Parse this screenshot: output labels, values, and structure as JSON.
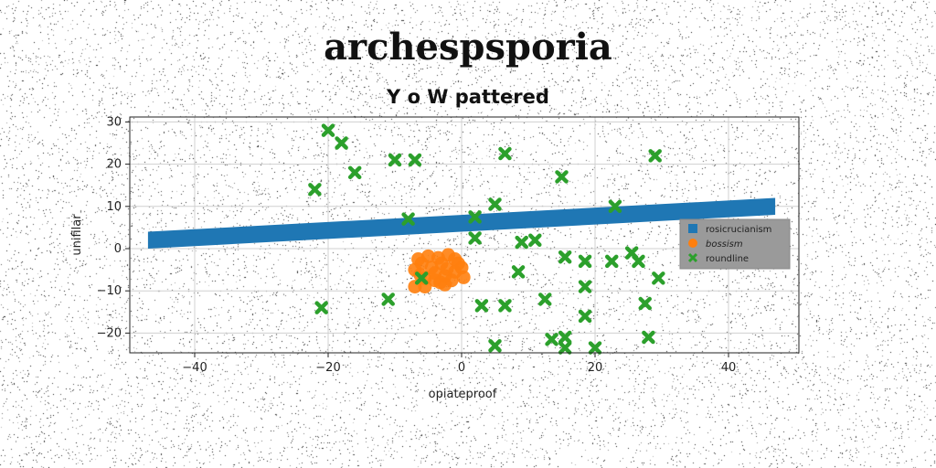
{
  "page": {
    "title": "archespsporia",
    "subtitle": "Y o W pattered"
  },
  "chart_data": {
    "type": "scatter",
    "title": "Y o W pattered",
    "xlabel": "opiateproof",
    "ylabel": "unifilar",
    "xlim": [
      -50,
      50
    ],
    "ylim": [
      -25,
      32
    ],
    "xticks": [
      "−40",
      "−20",
      "0",
      "20",
      "40"
    ],
    "yticks": [
      "30",
      "20",
      "10",
      "0",
      "−10",
      "−20"
    ],
    "grid": true,
    "legend_position": "right",
    "series": [
      {
        "name": "rosicrucianism",
        "kind": "band",
        "color": "#1f77b4",
        "x": [
          -47,
          47
        ],
        "y_lower": [
          0,
          8
        ],
        "y_upper": [
          4,
          12
        ]
      },
      {
        "name": "bossism",
        "kind": "scatter",
        "marker": "circle",
        "color": "#ff7f0e",
        "points": [
          [
            -6.5,
            -2.5
          ],
          [
            -5,
            -1.8
          ],
          [
            -3.5,
            -2.2
          ],
          [
            -2,
            -1.5
          ],
          [
            -0.5,
            -3.5
          ],
          [
            0,
            -4.5
          ],
          [
            -1,
            -5.5
          ],
          [
            -2.5,
            -6.5
          ],
          [
            -4,
            -7.5
          ],
          [
            -5.5,
            -7
          ],
          [
            -7,
            -5
          ],
          [
            -6,
            -3.5
          ],
          [
            -4.5,
            -4.5
          ],
          [
            -3,
            -3.5
          ],
          [
            -1.5,
            -7.5
          ],
          [
            -2.5,
            -8.5
          ],
          [
            -5.5,
            -9
          ],
          [
            -7,
            -9
          ],
          [
            -4,
            -5.8
          ],
          [
            -1,
            -2.5
          ],
          [
            0.3,
            -6.8
          ],
          [
            -3.2,
            -8
          ],
          [
            -6.2,
            -6.2
          ],
          [
            -2.2,
            -4.8
          ]
        ]
      },
      {
        "name": "roundline",
        "kind": "scatter",
        "marker": "X",
        "color": "#2ca02c",
        "points": [
          [
            -20,
            28
          ],
          [
            -18,
            25
          ],
          [
            -16,
            18
          ],
          [
            -22,
            14
          ],
          [
            -10,
            21
          ],
          [
            -7,
            21
          ],
          [
            6.5,
            22.5
          ],
          [
            15,
            17
          ],
          [
            29,
            22
          ],
          [
            5,
            10.5
          ],
          [
            23,
            10
          ],
          [
            -8,
            7
          ],
          [
            2,
            7.5
          ],
          [
            2,
            2.5
          ],
          [
            9,
            1.5
          ],
          [
            11,
            2
          ],
          [
            15.5,
            -2
          ],
          [
            18.5,
            -3
          ],
          [
            22.5,
            -3
          ],
          [
            25.5,
            -1
          ],
          [
            26.5,
            -3
          ],
          [
            29.5,
            -7
          ],
          [
            8.5,
            -5.5
          ],
          [
            18.5,
            -9
          ],
          [
            -6,
            -7
          ],
          [
            -11,
            -12
          ],
          [
            -21,
            -14
          ],
          [
            3,
            -13.5
          ],
          [
            6.5,
            -13.5
          ],
          [
            12.5,
            -12
          ],
          [
            27.5,
            -13
          ],
          [
            18.5,
            -16
          ],
          [
            13.5,
            -21.5
          ],
          [
            15.5,
            -21
          ],
          [
            15.5,
            -23.5
          ],
          [
            5,
            -23
          ],
          [
            20,
            -23.5
          ],
          [
            28,
            -21
          ]
        ]
      }
    ]
  }
}
